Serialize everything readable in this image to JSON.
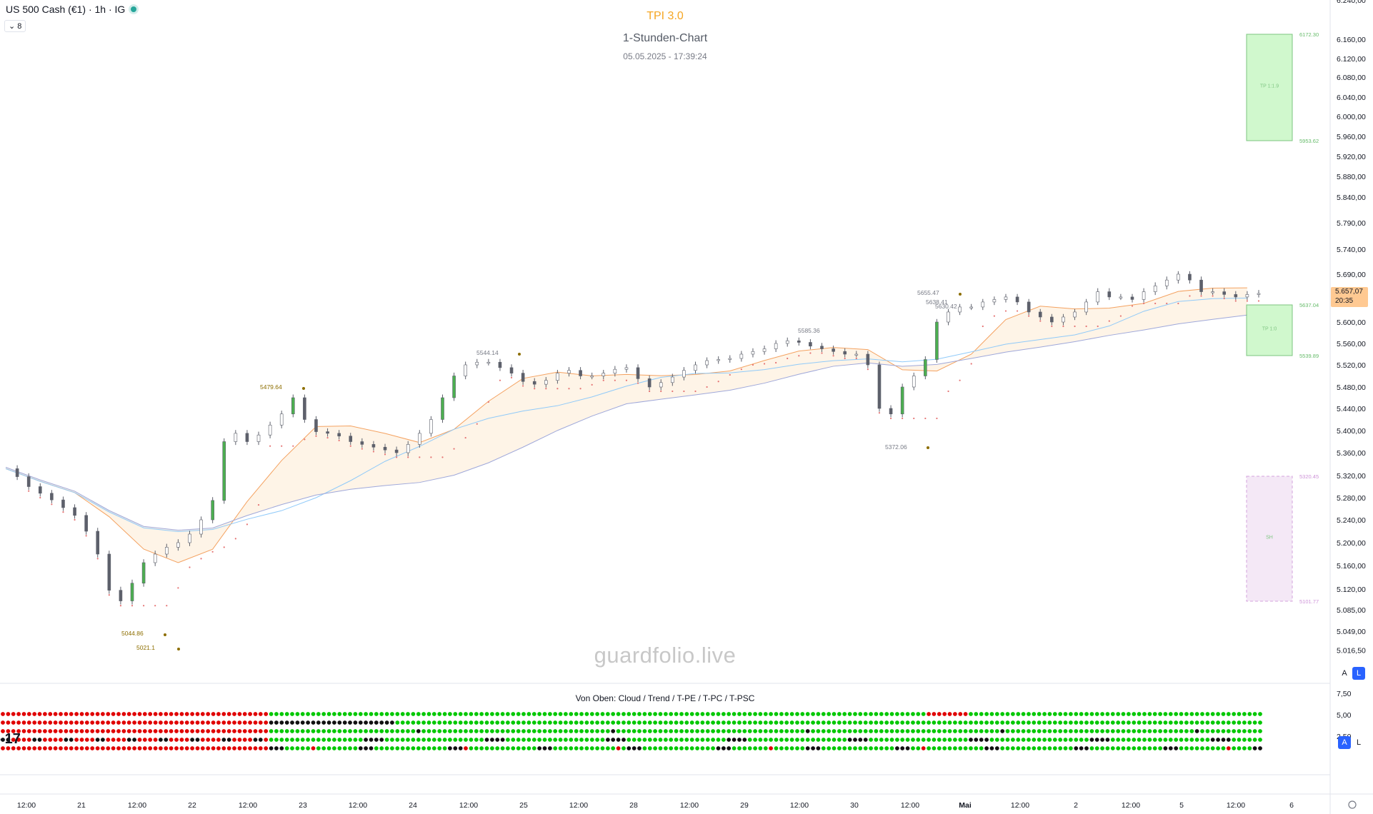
{
  "header": {
    "symbol": "US 500 Cash (€1) · 1h · IG",
    "indicator_count": "8",
    "tpi_title": "TPI 3.0",
    "chart_subtitle": "1-Stunden-Chart",
    "datetime": "05.05.2025 - 17:39:24"
  },
  "watermark": "guardfolio.live",
  "current_price": {
    "value": "5.657,07",
    "countdown": "20:35"
  },
  "subpanel": {
    "title": "Von Oben: Cloud / Trend / T-PE / T-PC / T-PSC",
    "y_ticks": [
      "7,50",
      "5,00",
      "2,50"
    ],
    "row_label": "-17"
  },
  "scale_buttons": {
    "auto": "A",
    "log": "L"
  },
  "colors": {
    "up": "#ffffff",
    "down": "#5d606b",
    "strong_up": "#4caf50",
    "strong_down": "#5d606b",
    "ema_fast": "#f4a261",
    "ema_mid": "#90caf9",
    "ema_slow": "#9fa8da",
    "trail": "#e57373",
    "tp_box": "#c8f7c5",
    "sl_box": "#f3e5f5",
    "dot_green": "#00c800",
    "dot_red": "#e00000",
    "dot_black": "#111111"
  },
  "chart_data": {
    "type": "candlestick",
    "title": "TPI 3.0",
    "y_axis_ticks": [
      "6.240,00",
      "6.160,00",
      "6.120,00",
      "6.080,00",
      "6.040,00",
      "6.000,00",
      "5.960,00",
      "5.920,00",
      "5.880,00",
      "5.840,00",
      "5.790,00",
      "5.740,00",
      "5.690,00",
      "5.657,07",
      "5.600,00",
      "5.560,00",
      "5.520,00",
      "5.480,00",
      "5.440,00",
      "5.400,00",
      "5.360,00",
      "5.320,00",
      "5.280,00",
      "5.240,00",
      "5.200,00",
      "5.160,00",
      "5.120,00",
      "5.085,00",
      "5.049,00",
      "5.016,50"
    ],
    "x_axis_ticks": [
      "12:00",
      "21",
      "12:00",
      "22",
      "12:00",
      "23",
      "12:00",
      "24",
      "12:00",
      "25",
      "12:00",
      "28",
      "12:00",
      "29",
      "12:00",
      "30",
      "12:00",
      "Mai",
      "12:00",
      "2",
      "12:00",
      "5",
      "12:00",
      "6"
    ],
    "ylim": [
      5000,
      6240
    ],
    "series": [
      {
        "name": "close",
        "values": [
          5332,
          5318,
          5300,
          5288,
          5276,
          5262,
          5248,
          5220,
          5180,
          5118,
          5100,
          5130,
          5165,
          5180,
          5192,
          5200,
          5215,
          5240,
          5275,
          5380,
          5395,
          5380,
          5392,
          5410,
          5430,
          5460,
          5420,
          5398,
          5395,
          5390,
          5380,
          5375,
          5370,
          5365,
          5360,
          5375,
          5395,
          5420,
          5460,
          5500,
          5520,
          5525,
          5525,
          5515,
          5505,
          5490,
          5485,
          5492,
          5505,
          5510,
          5500,
          5500,
          5505,
          5512,
          5515,
          5495,
          5480,
          5488,
          5498,
          5510,
          5520,
          5528,
          5530,
          5532,
          5540,
          5545,
          5550,
          5560,
          5565,
          5562,
          5555,
          5550,
          5545,
          5540,
          5540,
          5520,
          5440,
          5430,
          5480,
          5500,
          5530,
          5600,
          5620,
          5630,
          5630,
          5640,
          5645,
          5650,
          5640,
          5620,
          5610,
          5600,
          5610,
          5620,
          5640,
          5660,
          5650,
          5650,
          5645,
          5660,
          5670,
          5680,
          5690,
          5680,
          5660,
          5660,
          5655,
          5650,
          5655,
          5657
        ]
      },
      {
        "name": "ema_fast",
        "values": [
          5330,
          5310,
          5290,
          5270,
          5250,
          5232,
          5220,
          5213,
          5212,
          5225,
          5258,
          5298,
          5335,
          5370,
          5398,
          5418,
          5432,
          5447,
          5462,
          5475,
          5487,
          5497,
          5505,
          5512,
          5520,
          5527,
          5534,
          5541,
          5547,
          5553,
          5565,
          5590,
          5610,
          5628,
          5638,
          5645,
          5650
        ]
      }
    ],
    "annotations": [
      "5479.64",
      "5544.14",
      "5585.36",
      "5655.47",
      "5638.41",
      "5630.42",
      "5372.06",
      "5044.86",
      "5021.1"
    ],
    "target_boxes": [
      {
        "label": "TP 1:1.9",
        "top": "6172.30",
        "bottom": "5953.62"
      },
      {
        "label": "TP 1:0",
        "top": "5637.04",
        "bottom": "5539.89"
      },
      {
        "label": "SH",
        "top": "5320.45",
        "bottom": "5101.77"
      }
    ]
  }
}
